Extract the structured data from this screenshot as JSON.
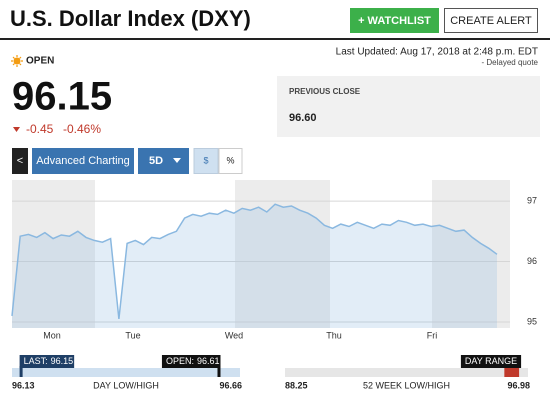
{
  "header": {
    "title": "U.S. Dollar Index (DXY)",
    "watchlist_button": "+ WATCHLIST",
    "alert_button": "CREATE ALERT"
  },
  "quote": {
    "status": "OPEN",
    "price": "96.15",
    "change": "-0.45",
    "change_pct": "-0.46%",
    "last_updated": "Last Updated: Aug 17, 2018 at 2:48 p.m. EDT",
    "delayed": "-  Delayed quote",
    "previous_close_label": "PREVIOUS CLOSE",
    "previous_close": "96.60"
  },
  "toolbar": {
    "back": "<",
    "advanced": "Advanced Charting",
    "period": "5D",
    "dollar": "$",
    "percent": "%"
  },
  "chart_data": {
    "type": "line",
    "x_labels": [
      "Mon",
      "Tue",
      "Wed",
      "Thu",
      "Fri"
    ],
    "series": [
      {
        "color": "#8ab8e0",
        "values": [
          95.1,
          96.42,
          96.45,
          96.4,
          96.48,
          96.38,
          96.44,
          96.42,
          96.5,
          96.4,
          96.35,
          96.32,
          96.38,
          95.05,
          96.3,
          96.35,
          96.28,
          96.4,
          96.38,
          96.45,
          96.5,
          96.72,
          96.78,
          96.75,
          96.8,
          96.78,
          96.85,
          96.8,
          96.88,
          96.85,
          96.9,
          96.82,
          96.95,
          96.9,
          96.92,
          96.85,
          96.8,
          96.72,
          96.6,
          96.55,
          96.62,
          96.58,
          96.65,
          96.6,
          96.55,
          96.62,
          96.6,
          96.68,
          96.65,
          96.6,
          96.62,
          96.58,
          96.6,
          96.55,
          96.5,
          96.52,
          96.4,
          96.3,
          96.22,
          96.12
        ]
      }
    ],
    "ylim": [
      94.9,
      97.35
    ],
    "yticks": [
      95,
      96,
      97
    ],
    "grid": true
  },
  "ranges": {
    "day": {
      "low": 96.13,
      "high": 96.66,
      "label": "DAY LOW/HIGH",
      "last_label": "LAST:",
      "last": 96.15,
      "open_label": "OPEN:",
      "open": 96.61
    },
    "week52": {
      "low": 88.25,
      "high": 96.98,
      "label": "52 WEEK LOW/HIGH",
      "range_label": "DAY RANGE"
    }
  }
}
